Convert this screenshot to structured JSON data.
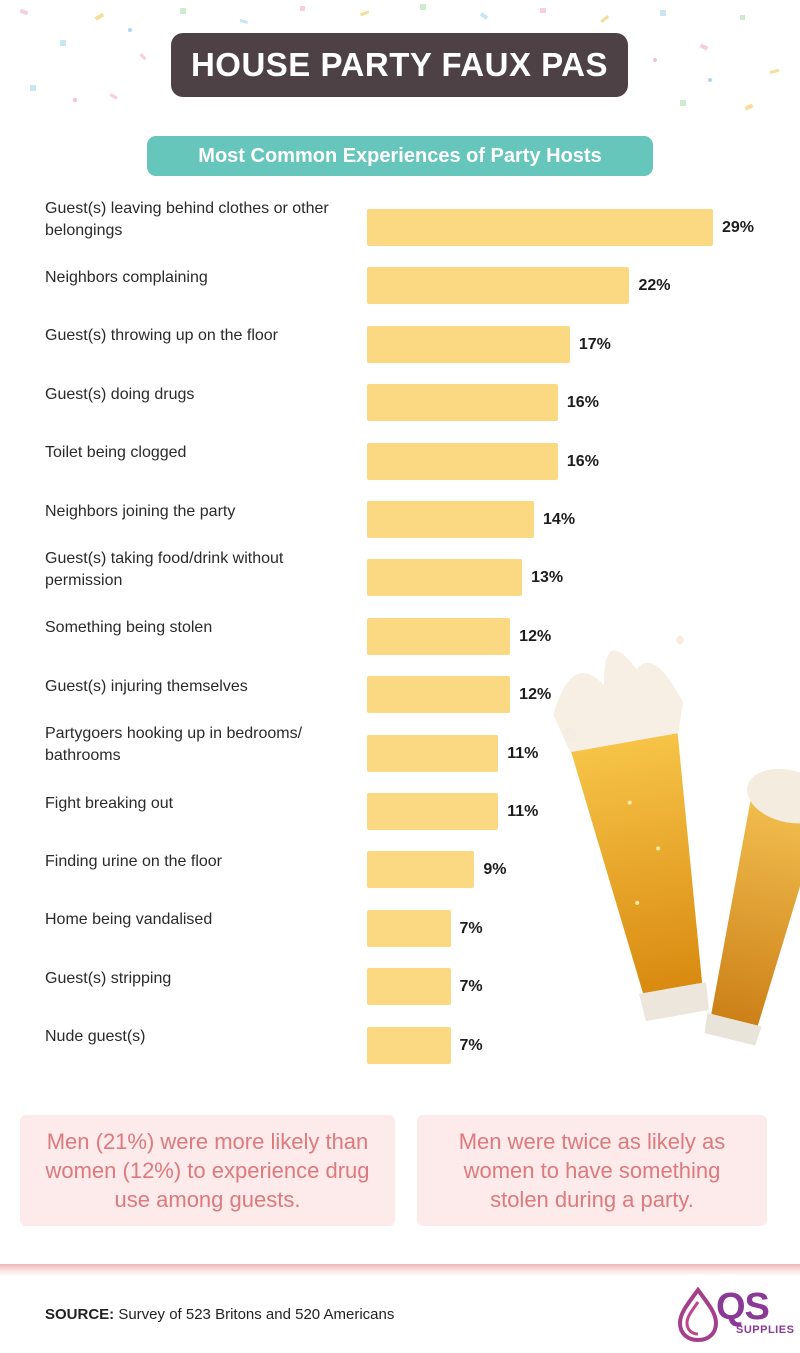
{
  "header": {
    "title": "HOUSE PARTY FAUX PAS",
    "subtitle": "Most Common Experiences of Party Hosts"
  },
  "colors": {
    "bar": "#fbd983",
    "title_bg": "#4e4146",
    "subtitle_bg": "#67c6bc",
    "note_bg": "#fdeaea",
    "note_text": "#dc7a7d"
  },
  "chart_data": {
    "type": "bar",
    "orientation": "horizontal",
    "title": "Most Common Experiences of Party Hosts",
    "xlabel": "",
    "ylabel": "",
    "xlim": [
      0,
      29
    ],
    "grid": false,
    "legend": "none",
    "categories": [
      "Guest(s) leaving behind clothes or other belongings",
      "Neighbors complaining",
      "Guest(s) throwing up on the floor",
      "Guest(s) doing drugs",
      "Toilet being clogged",
      "Neighbors joining the party",
      "Guest(s) taking food/drink without permission",
      "Something being stolen",
      "Guest(s) injuring themselves",
      "Partygoers hooking up in bedrooms/ bathrooms",
      "Fight breaking out",
      "Finding urine on the floor",
      "Home being vandalised",
      "Guest(s) stripping",
      "Nude guest(s)"
    ],
    "values": [
      29,
      22,
      17,
      16,
      16,
      14,
      13,
      12,
      12,
      11,
      11,
      9,
      7,
      7,
      7
    ],
    "value_labels": [
      "29%",
      "22%",
      "17%",
      "16%",
      "16%",
      "14%",
      "13%",
      "12%",
      "12%",
      "11%",
      "11%",
      "9%",
      "7%",
      "7%",
      "7%"
    ]
  },
  "notes": {
    "left": "Men (21%) were more likely than women (12%) to experience drug use among guests.",
    "right": "Men were twice as likely as women to have something stolen during a party."
  },
  "footer": {
    "source_label": "SOURCE:",
    "source_text": " Survey of 523 Britons and 520 Americans",
    "logo_text": "QS",
    "logo_sub": "SUPPLIES"
  },
  "images": {
    "decoration": "beer-glasses-toast",
    "confetti": "confetti"
  }
}
